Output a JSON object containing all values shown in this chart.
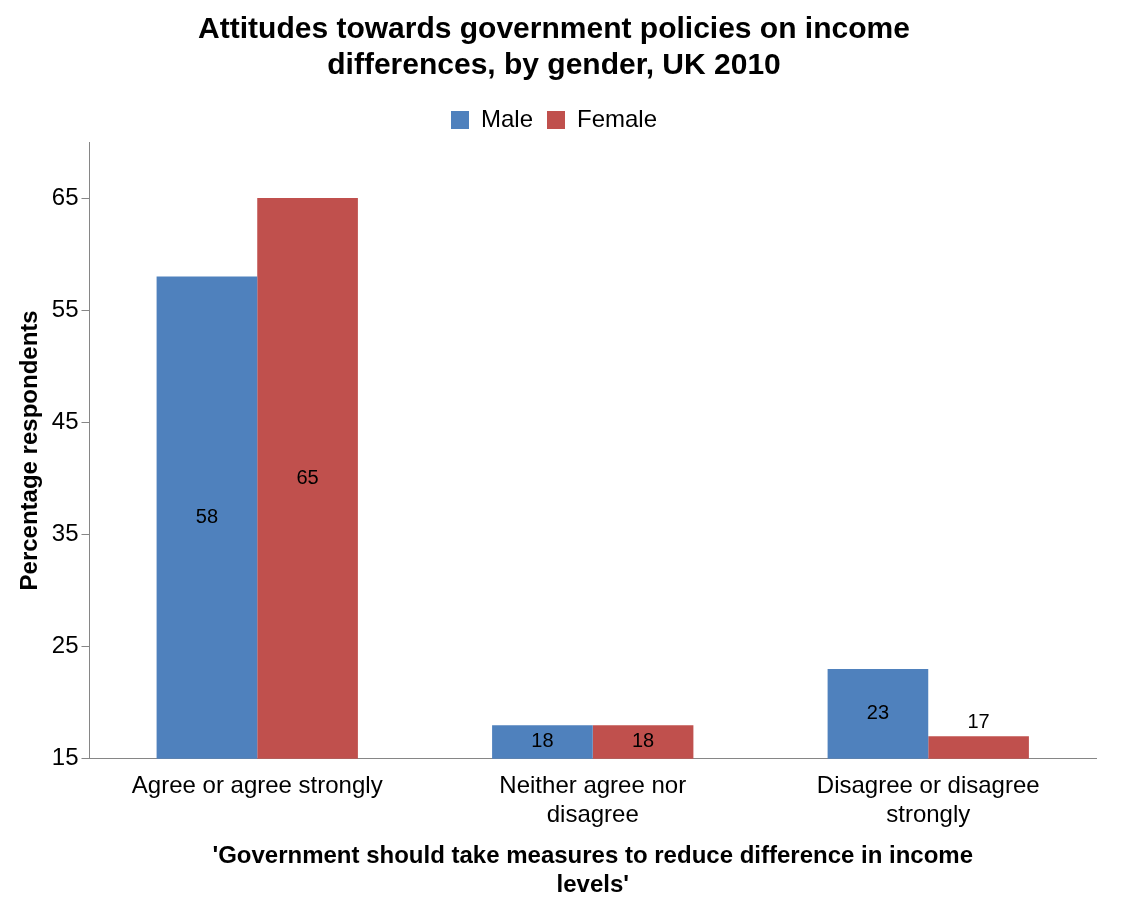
{
  "chart_data": {
    "type": "bar",
    "title": "Attitudes towards government policies on income differences, by gender, UK 2010",
    "xlabel": "'Government should take measures to reduce difference in income levels'",
    "ylabel": "Percentage respondents",
    "categories": [
      "Agree or agree strongly",
      "Neither agree nor disagree",
      "Disagree or disagree strongly"
    ],
    "series": [
      {
        "name": "Male",
        "color": "#4f81bd",
        "values": [
          58,
          18,
          23
        ]
      },
      {
        "name": "Female",
        "color": "#c0504d",
        "values": [
          65,
          18,
          17
        ]
      }
    ],
    "ylim": [
      15,
      70
    ],
    "yticks": [
      15,
      25,
      35,
      45,
      55,
      65
    ],
    "grid": false,
    "legend": "top",
    "data_labels": true
  }
}
